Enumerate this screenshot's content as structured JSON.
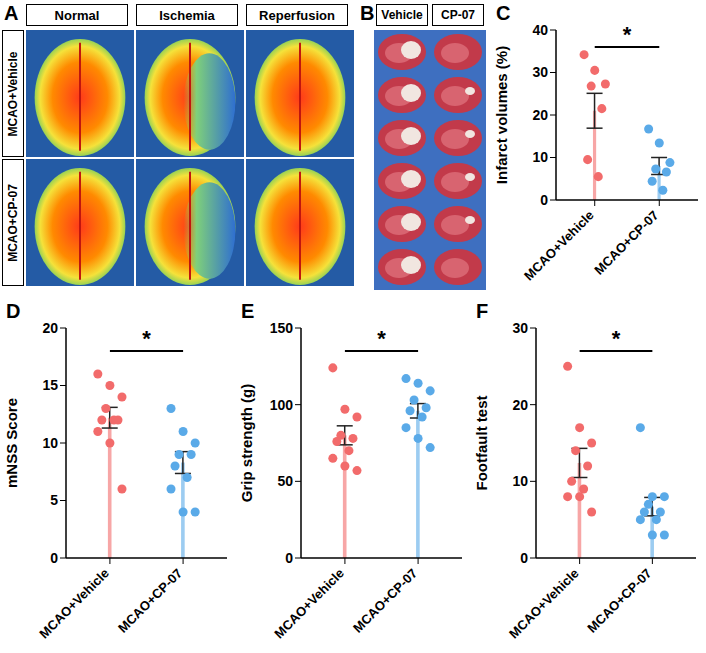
{
  "chart_data": [
    {
      "panel": "C",
      "type": "bar",
      "categories": [
        "MCAO+Vehicle",
        "MCAO+CP-07"
      ],
      "values": [
        21,
        8
      ],
      "errors": [
        4.1,
        2.0
      ],
      "points": [
        [
          34.2,
          30.5,
          27.3,
          26.8,
          21.5,
          9.5,
          5.5
        ],
        [
          16.7,
          13.4,
          8.8,
          7.3,
          6.6,
          4.4,
          2.3
        ]
      ],
      "colors": [
        "#f26b6b",
        "#5aaae8"
      ],
      "y_label": "Infarct volumes (%)",
      "ylim": [
        0,
        40
      ],
      "yticks": [
        0,
        10,
        20,
        30,
        40
      ],
      "annotation": "*",
      "grid": false
    },
    {
      "panel": "D",
      "type": "bar",
      "categories": [
        "MCAO+Vehicle",
        "MCAO+CP-07"
      ],
      "values": [
        12.2,
        8.3
      ],
      "errors": [
        0.9,
        0.95
      ],
      "points": [
        [
          16,
          15,
          14,
          13,
          12,
          12,
          12,
          11,
          10,
          6
        ],
        [
          13,
          11,
          10,
          9,
          9,
          8,
          7,
          6,
          4,
          4
        ]
      ],
      "colors": [
        "#f26b6b",
        "#5aaae8"
      ],
      "y_label": "mNSS Score",
      "ylim": [
        0,
        20
      ],
      "yticks": [
        0,
        5,
        10,
        15,
        20
      ],
      "annotation": "*",
      "grid": false
    },
    {
      "panel": "E",
      "type": "bar",
      "categories": [
        "MCAO+Vehicle",
        "MCAO+CP-07"
      ],
      "values": [
        80,
        96
      ],
      "errors": [
        6.2,
        4.7
      ],
      "points": [
        [
          124,
          97,
          92,
          80,
          78,
          76,
          70,
          65,
          60,
          57
        ],
        [
          117,
          114,
          109,
          103,
          98,
          96,
          92,
          85,
          78,
          72
        ]
      ],
      "colors": [
        "#f26b6b",
        "#5aaae8"
      ],
      "y_label": "Grip strength (g)",
      "ylim": [
        0,
        150
      ],
      "yticks": [
        0,
        50,
        100,
        150
      ],
      "annotation": "*",
      "grid": false
    },
    {
      "panel": "F",
      "type": "bar",
      "categories": [
        "MCAO+Vehicle",
        "MCAO+CP-07"
      ],
      "values": [
        12.4,
        6.7
      ],
      "errors": [
        1.9,
        1.2
      ],
      "points": [
        [
          25,
          17,
          15,
          14,
          12,
          10,
          9,
          8,
          8,
          6
        ],
        [
          17,
          8,
          8,
          7,
          6,
          6,
          5,
          5,
          3,
          3
        ]
      ],
      "colors": [
        "#f26b6b",
        "#5aaae8"
      ],
      "y_label": "Footfault test",
      "ylim": [
        0,
        30
      ],
      "yticks": [
        0,
        10,
        20,
        30
      ],
      "annotation": "*",
      "grid": false
    }
  ],
  "images": {
    "A": {
      "panel": "A",
      "columns": [
        "Normal",
        "Ischemia",
        "Reperfusion"
      ],
      "rows": [
        "MCAO+Vehicle",
        "MCAO+CP-07"
      ]
    },
    "B": {
      "panel": "B",
      "columns": [
        "Vehicle",
        "CP-07"
      ]
    }
  }
}
